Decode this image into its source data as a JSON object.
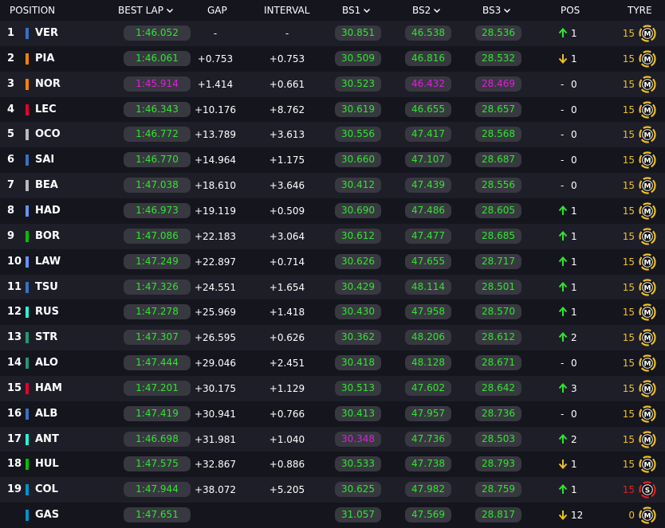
{
  "header": {
    "position": "POSITION",
    "best_lap": "BEST LAP",
    "gap": "GAP",
    "interval": "INTERVAL",
    "bs1": "BS1",
    "bs2": "BS2",
    "bs3": "BS3",
    "pos": "POS",
    "tyre": "TYRE"
  },
  "colors": {
    "background": "#15151e",
    "row_alt": "#1e1e28",
    "pill": "#383840",
    "personal_best": "#2ee62e",
    "overall_best": "#e01ee0",
    "gain": "#2ee62e",
    "loss": "#f0c020",
    "medium_tyre": "#f0c020",
    "soft_tyre": "#e02020"
  },
  "rows": [
    {
      "pos": "1",
      "driver": "VER",
      "team_color": "#3671c6",
      "best_lap": "1:46.052",
      "best_lap_color": "green",
      "gap": "-",
      "interval": "-",
      "bs1": "30.851",
      "bs1_color": "green",
      "bs2": "46.538",
      "bs2_color": "green",
      "bs3": "28.536",
      "bs3_color": "green",
      "change_dir": "up",
      "change": "1",
      "tyre_age": "15",
      "tyre": "M",
      "tyre_color": "medium"
    },
    {
      "pos": "2",
      "driver": "PIA",
      "team_color": "#ff8000",
      "best_lap": "1:46.061",
      "best_lap_color": "green",
      "gap": "+0.753",
      "interval": "+0.753",
      "bs1": "30.509",
      "bs1_color": "green",
      "bs2": "46.816",
      "bs2_color": "green",
      "bs3": "28.532",
      "bs3_color": "green",
      "change_dir": "down",
      "change": "1",
      "tyre_age": "15",
      "tyre": "M",
      "tyre_color": "medium"
    },
    {
      "pos": "3",
      "driver": "NOR",
      "team_color": "#ff8000",
      "best_lap": "1:45.914",
      "best_lap_color": "purple",
      "gap": "+1.414",
      "interval": "+0.661",
      "bs1": "30.523",
      "bs1_color": "green",
      "bs2": "46.432",
      "bs2_color": "purple",
      "bs3": "28.469",
      "bs3_color": "purple",
      "change_dir": "none",
      "change": "0",
      "tyre_age": "15",
      "tyre": "M",
      "tyre_color": "medium"
    },
    {
      "pos": "4",
      "driver": "LEC",
      "team_color": "#e8002d",
      "best_lap": "1:46.343",
      "best_lap_color": "green",
      "gap": "+10.176",
      "interval": "+8.762",
      "bs1": "30.619",
      "bs1_color": "green",
      "bs2": "46.655",
      "bs2_color": "green",
      "bs3": "28.657",
      "bs3_color": "green",
      "change_dir": "none",
      "change": "0",
      "tyre_age": "15",
      "tyre": "M",
      "tyre_color": "medium"
    },
    {
      "pos": "5",
      "driver": "OCO",
      "team_color": "#b6babd",
      "best_lap": "1:46.772",
      "best_lap_color": "green",
      "gap": "+13.789",
      "interval": "+3.613",
      "bs1": "30.556",
      "bs1_color": "green",
      "bs2": "47.417",
      "bs2_color": "green",
      "bs3": "28.568",
      "bs3_color": "green",
      "change_dir": "none",
      "change": "0",
      "tyre_age": "15",
      "tyre": "M",
      "tyre_color": "medium"
    },
    {
      "pos": "6",
      "driver": "SAI",
      "team_color": "#3671c6",
      "best_lap": "1:46.770",
      "best_lap_color": "green",
      "gap": "+14.964",
      "interval": "+1.175",
      "bs1": "30.660",
      "bs1_color": "green",
      "bs2": "47.107",
      "bs2_color": "green",
      "bs3": "28.687",
      "bs3_color": "green",
      "change_dir": "none",
      "change": "0",
      "tyre_age": "15",
      "tyre": "M",
      "tyre_color": "medium"
    },
    {
      "pos": "7",
      "driver": "BEA",
      "team_color": "#b6babd",
      "best_lap": "1:47.038",
      "best_lap_color": "green",
      "gap": "+18.610",
      "interval": "+3.646",
      "bs1": "30.412",
      "bs1_color": "green",
      "bs2": "47.439",
      "bs2_color": "green",
      "bs3": "28.556",
      "bs3_color": "green",
      "change_dir": "none",
      "change": "0",
      "tyre_age": "15",
      "tyre": "M",
      "tyre_color": "medium"
    },
    {
      "pos": "8",
      "driver": "HAD",
      "team_color": "#6692ff",
      "best_lap": "1:46.973",
      "best_lap_color": "green",
      "gap": "+19.119",
      "interval": "+0.509",
      "bs1": "30.690",
      "bs1_color": "green",
      "bs2": "47.486",
      "bs2_color": "green",
      "bs3": "28.605",
      "bs3_color": "green",
      "change_dir": "up",
      "change": "1",
      "tyre_age": "15",
      "tyre": "M",
      "tyre_color": "medium"
    },
    {
      "pos": "9",
      "driver": "BOR",
      "team_color": "#00c000",
      "best_lap": "1:47.086",
      "best_lap_color": "green",
      "gap": "+22.183",
      "interval": "+3.064",
      "bs1": "30.612",
      "bs1_color": "green",
      "bs2": "47.477",
      "bs2_color": "green",
      "bs3": "28.685",
      "bs3_color": "green",
      "change_dir": "up",
      "change": "1",
      "tyre_age": "15",
      "tyre": "M",
      "tyre_color": "medium"
    },
    {
      "pos": "10",
      "driver": "LAW",
      "team_color": "#6692ff",
      "best_lap": "1:47.249",
      "best_lap_color": "green",
      "gap": "+22.897",
      "interval": "+0.714",
      "bs1": "30.626",
      "bs1_color": "green",
      "bs2": "47.655",
      "bs2_color": "green",
      "bs3": "28.717",
      "bs3_color": "green",
      "change_dir": "up",
      "change": "1",
      "tyre_age": "15",
      "tyre": "M",
      "tyre_color": "medium"
    },
    {
      "pos": "11",
      "driver": "TSU",
      "team_color": "#3671c6",
      "best_lap": "1:47.326",
      "best_lap_color": "green",
      "gap": "+24.551",
      "interval": "+1.654",
      "bs1": "30.429",
      "bs1_color": "green",
      "bs2": "48.114",
      "bs2_color": "green",
      "bs3": "28.501",
      "bs3_color": "green",
      "change_dir": "up",
      "change": "1",
      "tyre_age": "15",
      "tyre": "M",
      "tyre_color": "medium"
    },
    {
      "pos": "12",
      "driver": "RUS",
      "team_color": "#27f4d2",
      "best_lap": "1:47.278",
      "best_lap_color": "green",
      "gap": "+25.969",
      "interval": "+1.418",
      "bs1": "30.430",
      "bs1_color": "green",
      "bs2": "47.958",
      "bs2_color": "green",
      "bs3": "28.570",
      "bs3_color": "green",
      "change_dir": "up",
      "change": "1",
      "tyre_age": "15",
      "tyre": "M",
      "tyre_color": "medium"
    },
    {
      "pos": "13",
      "driver": "STR",
      "team_color": "#229971",
      "best_lap": "1:47.307",
      "best_lap_color": "green",
      "gap": "+26.595",
      "interval": "+0.626",
      "bs1": "30.362",
      "bs1_color": "green",
      "bs2": "48.206",
      "bs2_color": "green",
      "bs3": "28.612",
      "bs3_color": "green",
      "change_dir": "up",
      "change": "2",
      "tyre_age": "15",
      "tyre": "M",
      "tyre_color": "medium"
    },
    {
      "pos": "14",
      "driver": "ALO",
      "team_color": "#229971",
      "best_lap": "1:47.444",
      "best_lap_color": "green",
      "gap": "+29.046",
      "interval": "+2.451",
      "bs1": "30.418",
      "bs1_color": "green",
      "bs2": "48.128",
      "bs2_color": "green",
      "bs3": "28.671",
      "bs3_color": "green",
      "change_dir": "none",
      "change": "0",
      "tyre_age": "15",
      "tyre": "M",
      "tyre_color": "medium"
    },
    {
      "pos": "15",
      "driver": "HAM",
      "team_color": "#e8002d",
      "best_lap": "1:47.201",
      "best_lap_color": "green",
      "gap": "+30.175",
      "interval": "+1.129",
      "bs1": "30.513",
      "bs1_color": "green",
      "bs2": "47.602",
      "bs2_color": "green",
      "bs3": "28.642",
      "bs3_color": "green",
      "change_dir": "up",
      "change": "3",
      "tyre_age": "15",
      "tyre": "M",
      "tyre_color": "medium"
    },
    {
      "pos": "16",
      "driver": "ALB",
      "team_color": "#3671c6",
      "best_lap": "1:47.419",
      "best_lap_color": "green",
      "gap": "+30.941",
      "interval": "+0.766",
      "bs1": "30.413",
      "bs1_color": "green",
      "bs2": "47.957",
      "bs2_color": "green",
      "bs3": "28.736",
      "bs3_color": "green",
      "change_dir": "none",
      "change": "0",
      "tyre_age": "15",
      "tyre": "M",
      "tyre_color": "medium"
    },
    {
      "pos": "17",
      "driver": "ANT",
      "team_color": "#27f4d2",
      "best_lap": "1:46.698",
      "best_lap_color": "green",
      "gap": "+31.981",
      "interval": "+1.040",
      "bs1": "30.348",
      "bs1_color": "purple",
      "bs2": "47.736",
      "bs2_color": "green",
      "bs3": "28.503",
      "bs3_color": "green",
      "change_dir": "up",
      "change": "2",
      "tyre_age": "15",
      "tyre": "M",
      "tyre_color": "medium"
    },
    {
      "pos": "18",
      "driver": "HUL",
      "team_color": "#00c000",
      "best_lap": "1:47.575",
      "best_lap_color": "green",
      "gap": "+32.867",
      "interval": "+0.886",
      "bs1": "30.533",
      "bs1_color": "green",
      "bs2": "47.738",
      "bs2_color": "green",
      "bs3": "28.793",
      "bs3_color": "green",
      "change_dir": "down",
      "change": "1",
      "tyre_age": "15",
      "tyre": "M",
      "tyre_color": "medium"
    },
    {
      "pos": "19",
      "driver": "COL",
      "team_color": "#0093cc",
      "best_lap": "1:47.944",
      "best_lap_color": "green",
      "gap": "+38.072",
      "interval": "+5.205",
      "bs1": "30.625",
      "bs1_color": "green",
      "bs2": "47.982",
      "bs2_color": "green",
      "bs3": "28.759",
      "bs3_color": "green",
      "change_dir": "up",
      "change": "1",
      "tyre_age": "15",
      "tyre": "S",
      "tyre_color": "soft"
    },
    {
      "pos": "",
      "driver": "GAS",
      "team_color": "#0093cc",
      "best_lap": "1:47.651",
      "best_lap_color": "green",
      "gap": "",
      "interval": "",
      "bs1": "31.057",
      "bs1_color": "green",
      "bs2": "47.569",
      "bs2_color": "green",
      "bs3": "28.817",
      "bs3_color": "green",
      "change_dir": "down",
      "change": "12",
      "tyre_age": "0",
      "tyre": "M",
      "tyre_color": "medium"
    }
  ]
}
